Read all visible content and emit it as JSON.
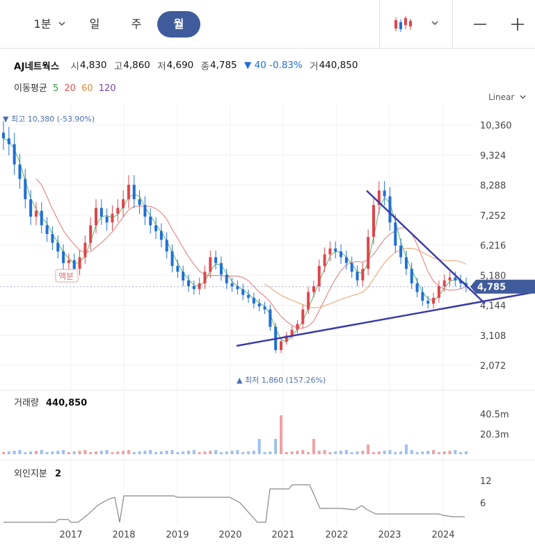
{
  "toolbar": {
    "period_label": "1분",
    "day_label": "일",
    "week_label": "주",
    "month_label": "월",
    "chart_type_icon": "candlestick-chart-icon",
    "zoom_out_icon": "minus-icon",
    "zoom_in_icon": "plus-icon"
  },
  "quote": {
    "name": "AJ네트웍스",
    "open_label": "시",
    "open": "4,830",
    "high_label": "고",
    "high": "4,860",
    "low_label": "저",
    "low": "4,690",
    "close_label": "종",
    "close": "4,785",
    "change": "▼ 40 -0.83%",
    "volume_label": "거",
    "volume": "440,850"
  },
  "ma_legend": {
    "label": "이동평균",
    "items": [
      {
        "text": "5",
        "color": "#2ea043"
      },
      {
        "text": "20",
        "color": "#e05252"
      },
      {
        "text": "60",
        "color": "#e08a3c"
      },
      {
        "text": "120",
        "color": "#7b3fb5"
      }
    ]
  },
  "scale_label": "Linear",
  "colors": {
    "up": "#e0454b",
    "down": "#1f6fd6",
    "accent": "#3f5b9b",
    "trendline": "#3a3aa8"
  },
  "chart_data": [
    {
      "type": "candlestick",
      "interval": "monthly",
      "y_ticks": [
        "10,360",
        "9,324",
        "8,288",
        "7,252",
        "6,216",
        "5,180",
        "4,144",
        "3,108",
        "2,072"
      ],
      "ylim": [
        1860,
        10500
      ],
      "x_ticks": [
        "2017",
        "2018",
        "2019",
        "2020",
        "2021",
        "2022",
        "2023",
        "2024"
      ],
      "current_price_label": "4,785",
      "max_annotation": "▼ 최고 10,380 (-53.90%)",
      "min_annotation": "▲ 최저 1,860 (157.26%)",
      "split_annotation": "액분",
      "close_series": [
        9900,
        9700,
        9000,
        8500,
        7800,
        7200,
        7400,
        6900,
        6600,
        6300,
        6000,
        5600,
        5700,
        5400,
        5800,
        6300,
        6900,
        7500,
        7200,
        7000,
        7300,
        7500,
        7800,
        8300,
        7800,
        7600,
        7200,
        6900,
        6700,
        6400,
        6000,
        5500,
        5300,
        5000,
        4800,
        4700,
        4900,
        5300,
        5800,
        5600,
        5200,
        4900,
        4800,
        4700,
        4500,
        4400,
        4200,
        4100,
        4000,
        3400,
        2600,
        2900,
        3100,
        3300,
        3500,
        4000,
        4600,
        4800,
        5500,
        5900,
        6100,
        6000,
        5800,
        5600,
        5300,
        5000,
        5400,
        6500,
        7600,
        8100,
        7900,
        7000,
        6200,
        5800,
        5400,
        4900,
        4600,
        4300,
        4200,
        4400,
        4800,
        5000,
        5100,
        5000,
        4900,
        4785
      ]
    },
    {
      "type": "bar",
      "title": "거래량",
      "value_label": "440,850",
      "y_ticks": [
        "40.5m",
        "20.3m"
      ]
    },
    {
      "type": "line",
      "title": "외인지분",
      "value_label": "2",
      "y_ticks": [
        "12",
        "6"
      ]
    }
  ]
}
